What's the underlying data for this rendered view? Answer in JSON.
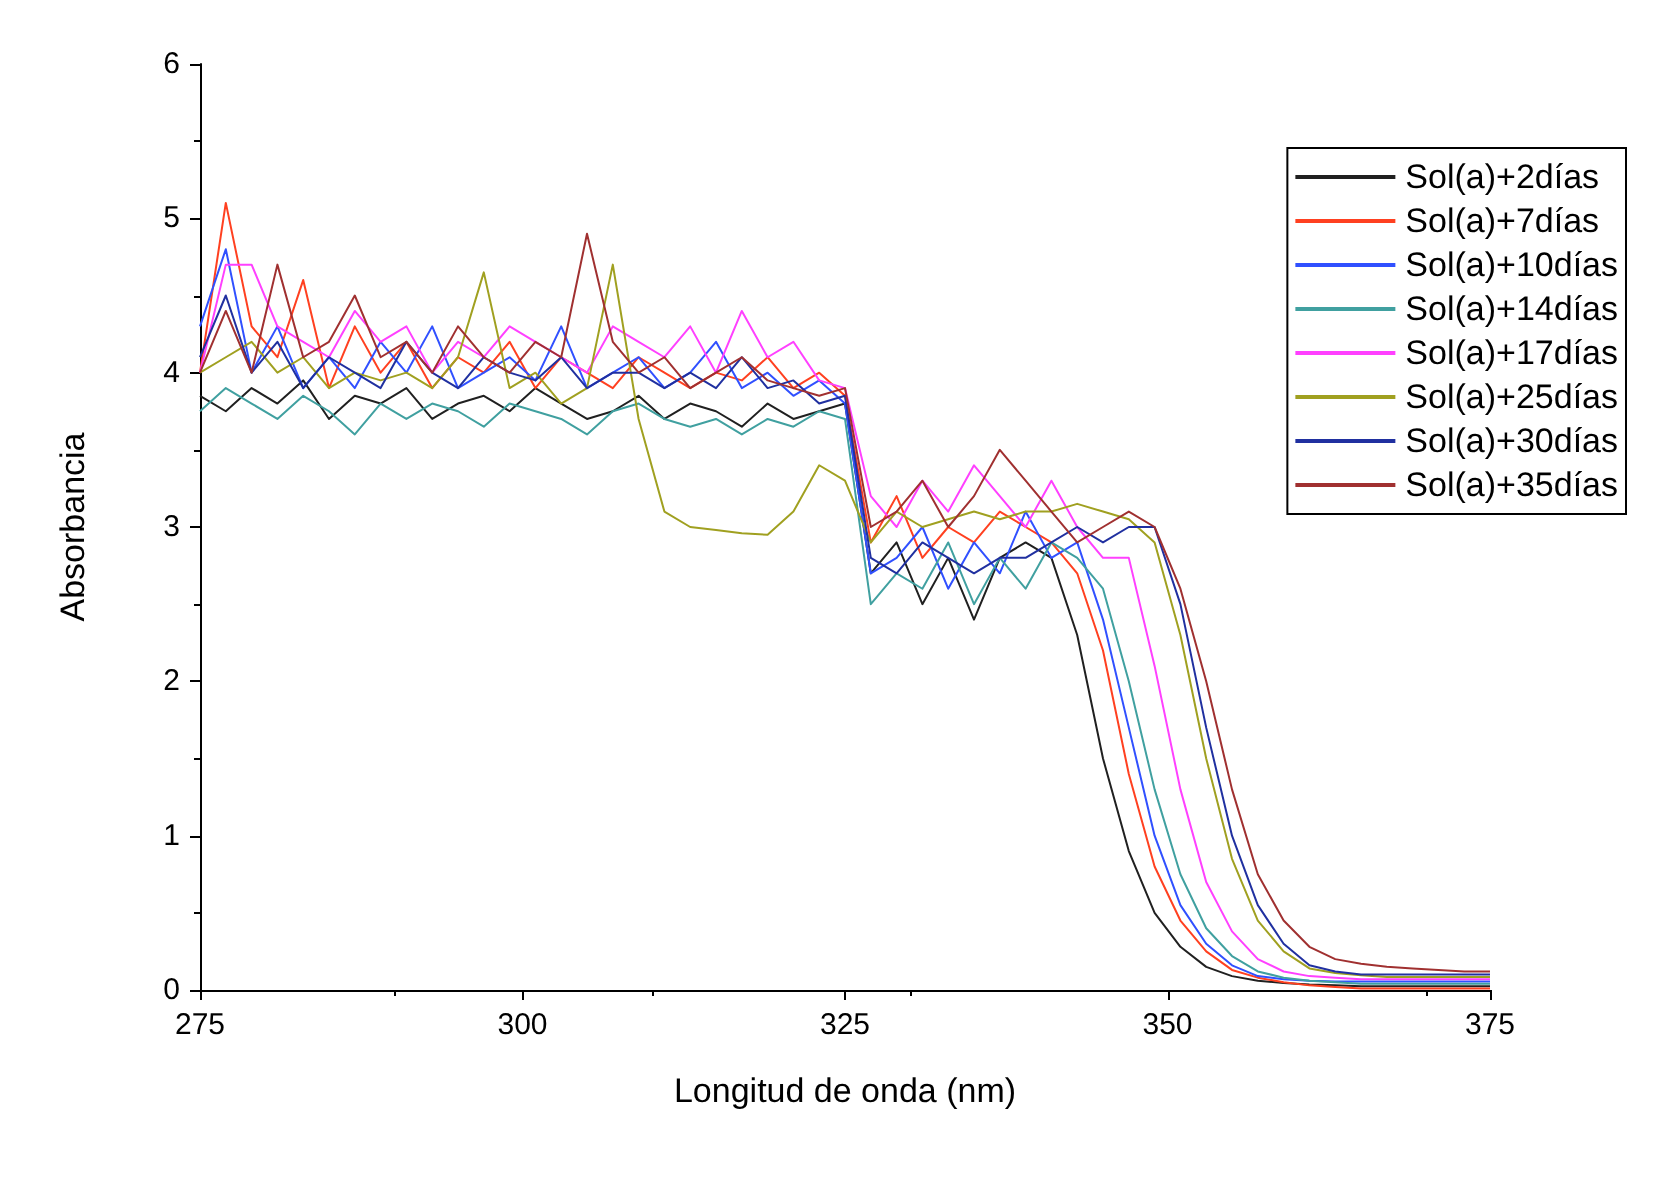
{
  "chart_data": {
    "type": "line",
    "xlabel": "Longitud de onda (nm)",
    "ylabel": "Absorbancia",
    "x": [
      275,
      277,
      279,
      281,
      283,
      285,
      287,
      289,
      291,
      293,
      295,
      297,
      299,
      301,
      303,
      305,
      307,
      309,
      311,
      313,
      315,
      317,
      319,
      321,
      323,
      325,
      327,
      329,
      331,
      333,
      335,
      337,
      339,
      341,
      343,
      345,
      347,
      349,
      351,
      353,
      355,
      357,
      359,
      361,
      363,
      365,
      367,
      369,
      371,
      373,
      375
    ],
    "xlim": [
      275,
      375
    ],
    "xticks": [
      275,
      300,
      325,
      350,
      375
    ],
    "ylim": [
      0,
      6
    ],
    "yticks": [
      0,
      1,
      2,
      3,
      4,
      5,
      6
    ],
    "grid": false,
    "legend": "top right",
    "marker": "none",
    "line_style": "solid",
    "series": [
      {
        "name": "Sol(a)+2días",
        "color": "#202020",
        "values": [
          3.85,
          3.75,
          3.9,
          3.8,
          3.95,
          3.7,
          3.85,
          3.8,
          3.9,
          3.7,
          3.8,
          3.85,
          3.75,
          3.9,
          3.8,
          3.7,
          3.75,
          3.85,
          3.7,
          3.8,
          3.75,
          3.65,
          3.8,
          3.7,
          3.75,
          3.8,
          2.7,
          2.9,
          2.5,
          2.8,
          2.4,
          2.8,
          2.9,
          2.8,
          2.3,
          1.5,
          0.9,
          0.5,
          0.28,
          0.15,
          0.09,
          0.06,
          0.045,
          0.035,
          0.03,
          0.025,
          0.025,
          0.025,
          0.025,
          0.025,
          0.025
        ]
      },
      {
        "name": "Sol(a)+7días",
        "color": "#ff4020",
        "values": [
          4.0,
          5.1,
          4.3,
          4.1,
          4.6,
          3.9,
          4.3,
          4.0,
          4.2,
          3.9,
          4.1,
          4.0,
          4.2,
          3.9,
          4.1,
          4.0,
          3.9,
          4.1,
          4.0,
          3.9,
          4.0,
          3.95,
          4.1,
          3.9,
          4.0,
          3.85,
          2.9,
          3.2,
          2.8,
          3.0,
          2.9,
          3.1,
          3.0,
          2.9,
          2.7,
          2.2,
          1.4,
          0.8,
          0.45,
          0.25,
          0.13,
          0.08,
          0.05,
          0.03,
          0.02,
          0.01,
          0.01,
          0.01,
          0.01,
          0.01,
          0.01
        ]
      },
      {
        "name": "Sol(a)+10días",
        "color": "#3050ff",
        "values": [
          4.3,
          4.8,
          4.0,
          4.3,
          3.9,
          4.1,
          3.9,
          4.2,
          4.0,
          4.3,
          3.9,
          4.0,
          4.1,
          3.95,
          4.3,
          3.9,
          4.0,
          4.1,
          3.9,
          4.0,
          4.2,
          3.9,
          4.0,
          3.85,
          3.95,
          3.8,
          2.7,
          2.8,
          3.0,
          2.6,
          2.9,
          2.7,
          3.1,
          2.8,
          2.9,
          2.4,
          1.7,
          1.0,
          0.55,
          0.3,
          0.16,
          0.09,
          0.07,
          0.06,
          0.055,
          0.055,
          0.055,
          0.055,
          0.055,
          0.055,
          0.055
        ]
      },
      {
        "name": "Sol(a)+14días",
        "color": "#40a0a0",
        "values": [
          3.75,
          3.9,
          3.8,
          3.7,
          3.85,
          3.75,
          3.6,
          3.8,
          3.7,
          3.8,
          3.75,
          3.65,
          3.8,
          3.75,
          3.7,
          3.6,
          3.75,
          3.8,
          3.7,
          3.65,
          3.7,
          3.6,
          3.7,
          3.65,
          3.75,
          3.7,
          2.5,
          2.7,
          2.6,
          2.9,
          2.5,
          2.8,
          2.6,
          2.9,
          2.8,
          2.6,
          2.0,
          1.3,
          0.75,
          0.4,
          0.22,
          0.12,
          0.08,
          0.06,
          0.05,
          0.04,
          0.04,
          0.04,
          0.04,
          0.04,
          0.04
        ]
      },
      {
        "name": "Sol(a)+17días",
        "color": "#ff40ff",
        "values": [
          4.0,
          4.7,
          4.7,
          4.3,
          4.2,
          4.1,
          4.4,
          4.2,
          4.3,
          4.0,
          4.2,
          4.1,
          4.3,
          4.2,
          4.1,
          4.0,
          4.3,
          4.2,
          4.1,
          4.3,
          4.0,
          4.4,
          4.1,
          4.2,
          3.95,
          3.9,
          3.2,
          3.0,
          3.3,
          3.1,
          3.4,
          3.2,
          3.0,
          3.3,
          3.0,
          2.8,
          2.8,
          2.1,
          1.3,
          0.7,
          0.38,
          0.2,
          0.12,
          0.09,
          0.08,
          0.07,
          0.07,
          0.07,
          0.07,
          0.07,
          0.07
        ]
      },
      {
        "name": "Sol(a)+25días",
        "color": "#a0a020",
        "values": [
          4.0,
          4.1,
          4.2,
          4.0,
          4.1,
          3.9,
          4.0,
          3.95,
          4.0,
          3.9,
          4.1,
          4.65,
          3.9,
          4.0,
          3.8,
          3.9,
          4.7,
          3.7,
          3.1,
          3.0,
          2.98,
          2.96,
          2.95,
          3.1,
          3.4,
          3.3,
          2.9,
          3.1,
          3.0,
          3.05,
          3.1,
          3.05,
          3.1,
          3.1,
          3.15,
          3.1,
          3.05,
          2.9,
          2.3,
          1.5,
          0.85,
          0.45,
          0.25,
          0.14,
          0.11,
          0.095,
          0.085,
          0.085,
          0.085,
          0.085,
          0.085
        ]
      },
      {
        "name": "Sol(a)+30días",
        "color": "#2030a0",
        "values": [
          4.1,
          4.5,
          4.0,
          4.2,
          3.9,
          4.1,
          4.0,
          3.9,
          4.2,
          4.0,
          3.9,
          4.1,
          4.0,
          3.95,
          4.1,
          3.9,
          4.0,
          4.0,
          3.9,
          4.0,
          3.9,
          4.1,
          3.9,
          3.95,
          3.8,
          3.85,
          2.8,
          2.7,
          2.9,
          2.8,
          2.7,
          2.8,
          2.8,
          2.9,
          3.0,
          2.9,
          3.0,
          3.0,
          2.5,
          1.7,
          1.0,
          0.55,
          0.3,
          0.16,
          0.12,
          0.1,
          0.1,
          0.1,
          0.1,
          0.1,
          0.1
        ]
      },
      {
        "name": "Sol(a)+35días",
        "color": "#a03030",
        "values": [
          4.0,
          4.4,
          4.0,
          4.7,
          4.1,
          4.2,
          4.5,
          4.1,
          4.2,
          4.0,
          4.3,
          4.1,
          4.0,
          4.2,
          4.1,
          4.9,
          4.2,
          4.0,
          4.1,
          3.9,
          4.0,
          4.1,
          3.95,
          3.9,
          3.85,
          3.9,
          3.0,
          3.1,
          3.3,
          3.0,
          3.2,
          3.5,
          3.3,
          3.1,
          2.9,
          3.0,
          3.1,
          3.0,
          2.6,
          2.0,
          1.3,
          0.75,
          0.45,
          0.28,
          0.2,
          0.17,
          0.15,
          0.14,
          0.13,
          0.12,
          0.12
        ]
      }
    ]
  }
}
